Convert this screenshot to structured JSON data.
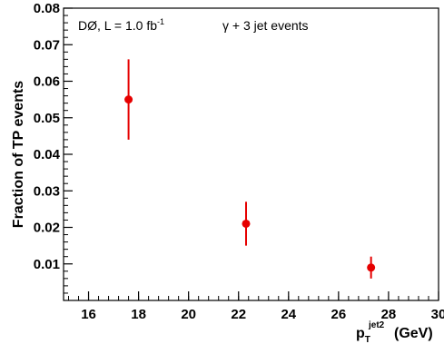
{
  "chart_data": {
    "type": "scatter",
    "xlabel": {
      "main": "p",
      "sub": "T",
      "sup": "jet2",
      "unit": "(GeV)"
    },
    "ylabel": "Fraction of TP events",
    "annotations": {
      "experiment": "DØ, L = 1.0 fb",
      "experiment_sup": "-1",
      "process": "γ + 3 jet events"
    },
    "xlim": [
      15,
      30
    ],
    "ylim": [
      0,
      0.08
    ],
    "x_ticks": [
      16,
      18,
      20,
      22,
      24,
      26,
      28,
      30
    ],
    "y_ticks": [
      0.01,
      0.02,
      0.03,
      0.04,
      0.05,
      0.06,
      0.07,
      0.08
    ],
    "grid": false,
    "marker_color": "#e60000",
    "points": [
      {
        "x": 17.6,
        "y": 0.055,
        "err_low": 0.011,
        "err_high": 0.011
      },
      {
        "x": 22.3,
        "y": 0.021,
        "err_low": 0.006,
        "err_high": 0.006
      },
      {
        "x": 27.3,
        "y": 0.009,
        "err_low": 0.003,
        "err_high": 0.003
      }
    ]
  }
}
